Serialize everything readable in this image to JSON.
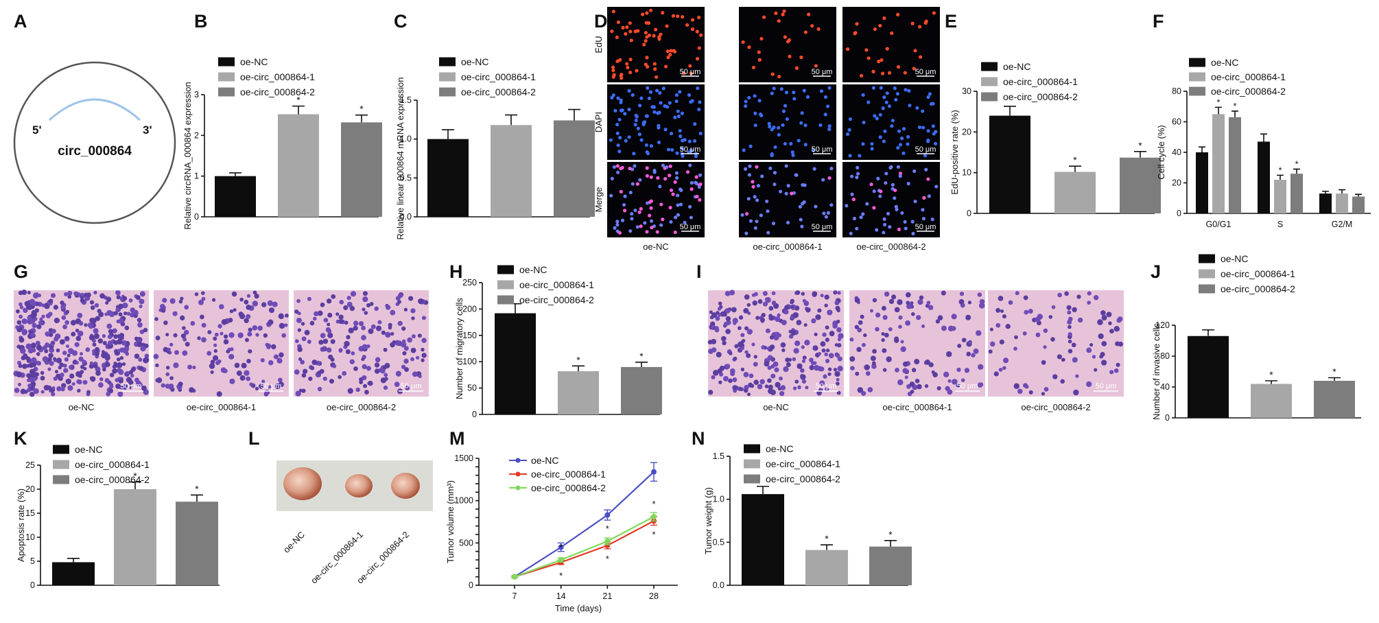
{
  "figure": {
    "palette": {
      "black": "#0d0d0d",
      "light_gray": "#a7a7a7",
      "dark_gray": "#7d7d7d",
      "line_blue": "#4a4fc4",
      "line_red": "#e23a2a",
      "line_green": "#7ed957"
    },
    "scale_bar_text": "50 μm",
    "legend_labels": [
      "oe-NC",
      "oe-circ_000864-1",
      "oe-circ_000864-2"
    ],
    "sig_marker": "*"
  },
  "panels": {
    "A": {
      "letter": "A",
      "circle_label": "circ_000864",
      "left_end": "5'",
      "right_end": "3'"
    },
    "B": {
      "letter": "B"
    },
    "C": {
      "letter": "C"
    },
    "D": {
      "letter": "D",
      "row_labels": [
        "EdU",
        "DAPI",
        "Merge"
      ],
      "column_labels": [
        "oe-NC",
        "oe-circ_000864-1",
        "oe-circ_000864-2"
      ]
    },
    "E": {
      "letter": "E"
    },
    "F": {
      "letter": "F"
    },
    "G": {
      "letter": "G",
      "column_labels": [
        "oe-NC",
        "oe-circ_000864-1",
        "oe-circ_000864-2"
      ]
    },
    "H": {
      "letter": "H"
    },
    "I": {
      "letter": "I",
      "column_labels": [
        "oe-NC",
        "oe-circ_000864-1",
        "oe-circ_000864-2"
      ]
    },
    "J": {
      "letter": "J"
    },
    "K": {
      "letter": "K"
    },
    "L": {
      "letter": "L",
      "labels": [
        "oe-NC",
        "oe-circ_000864-1",
        "oe-circ_000864-2"
      ]
    },
    "M": {
      "letter": "M"
    },
    "N": {
      "letter": "N"
    }
  },
  "chart_data": [
    {
      "id": "B",
      "type": "bar",
      "ylabel": "Relative circRNA_000864 expression",
      "ylim": [
        0,
        3
      ],
      "yticks": [
        0,
        1,
        2,
        3
      ],
      "categories": [
        "oe-NC",
        "oe-circ_000864-1",
        "oe-circ_000864-2"
      ],
      "values": [
        1.0,
        2.52,
        2.32
      ],
      "errors": [
        0.08,
        0.2,
        0.18
      ],
      "significant": [
        false,
        true,
        true
      ]
    },
    {
      "id": "C",
      "type": "bar",
      "ylabel": "Relative linear 000864 mRNA expression",
      "ylim": [
        0,
        1.5
      ],
      "yticks": [
        0.0,
        0.5,
        1.0,
        1.5
      ],
      "categories": [
        "oe-NC",
        "oe-circ_000864-1",
        "oe-circ_000864-2"
      ],
      "values": [
        1.0,
        1.18,
        1.24
      ],
      "errors": [
        0.12,
        0.13,
        0.14
      ],
      "significant": [
        false,
        false,
        false
      ]
    },
    {
      "id": "E",
      "type": "bar",
      "ylabel": "EdU-positive rate (%)",
      "ylim": [
        0,
        30
      ],
      "yticks": [
        0,
        10,
        20,
        30
      ],
      "categories": [
        "oe-NC",
        "oe-circ_000864-1",
        "oe-circ_000864-2"
      ],
      "values": [
        24,
        10.2,
        13.7
      ],
      "errors": [
        2.3,
        1.4,
        1.5
      ],
      "significant": [
        false,
        true,
        true
      ]
    },
    {
      "id": "F",
      "type": "bar",
      "ylabel": "Cell cycle (%)",
      "ylim": [
        0,
        80
      ],
      "yticks": [
        0,
        20,
        40,
        60,
        80
      ],
      "groups": [
        "G0/G1",
        "S",
        "G2/M"
      ],
      "series": [
        {
          "name": "oe-NC",
          "values": [
            40,
            47,
            13
          ],
          "errors": [
            3.5,
            5,
            1.5
          ],
          "significant": [
            false,
            false,
            false
          ]
        },
        {
          "name": "oe-circ_000864-1",
          "values": [
            65,
            22,
            13
          ],
          "errors": [
            4.5,
            3,
            2.5
          ],
          "significant": [
            true,
            true,
            false
          ]
        },
        {
          "name": "oe-circ_000864-2",
          "values": [
            63,
            26,
            11
          ],
          "errors": [
            4,
            3,
            1.5
          ],
          "significant": [
            true,
            true,
            false
          ]
        }
      ]
    },
    {
      "id": "H",
      "type": "bar",
      "ylabel": "Number of migratory cells",
      "ylim": [
        0,
        250
      ],
      "yticks": [
        0,
        50,
        100,
        150,
        200,
        250
      ],
      "categories": [
        "oe-NC",
        "oe-circ_000864-1",
        "oe-circ_000864-2"
      ],
      "values": [
        192,
        82,
        90
      ],
      "errors": [
        18,
        10,
        9
      ],
      "significant": [
        false,
        true,
        true
      ]
    },
    {
      "id": "J",
      "type": "bar",
      "ylabel": "Number of invasive cells",
      "ylim": [
        0,
        120
      ],
      "yticks": [
        0,
        40,
        80,
        120
      ],
      "categories": [
        "oe-NC",
        "oe-circ_000864-1",
        "oe-circ_000864-2"
      ],
      "values": [
        106,
        44,
        48
      ],
      "errors": [
        8,
        4,
        4
      ],
      "significant": [
        false,
        true,
        true
      ]
    },
    {
      "id": "K",
      "type": "bar",
      "ylabel": "Apoptosis rate (%)",
      "ylim": [
        0,
        25
      ],
      "yticks": [
        0,
        5,
        10,
        15,
        20,
        25
      ],
      "categories": [
        "oe-NC",
        "oe-circ_000864-1",
        "oe-circ_000864-2"
      ],
      "values": [
        4.8,
        20,
        17.4
      ],
      "errors": [
        0.8,
        1.5,
        1.4
      ],
      "significant": [
        false,
        true,
        true
      ]
    },
    {
      "id": "M",
      "type": "line",
      "xlabel": "Time (days)",
      "ylabel": "Tumor volume (mm³)",
      "ylim": [
        0,
        1500
      ],
      "yticks": [
        0,
        100,
        200,
        300,
        400,
        500,
        600,
        700,
        800,
        900,
        1000,
        1100,
        1200,
        1300,
        1400,
        1500
      ],
      "x": [
        7,
        14,
        21,
        28
      ],
      "series": [
        {
          "name": "oe-NC",
          "values": [
            100,
            450,
            830,
            1340
          ],
          "errors": [
            10,
            50,
            60,
            110
          ]
        },
        {
          "name": "oe-circ_000864-1",
          "values": [
            100,
            270,
            470,
            760
          ],
          "errors": [
            10,
            25,
            40,
            50
          ]
        },
        {
          "name": "oe-circ_000864-2",
          "values": [
            100,
            300,
            520,
            810
          ],
          "errors": [
            10,
            25,
            40,
            50
          ]
        }
      ]
    },
    {
      "id": "N",
      "type": "bar",
      "ylabel": "Tumor weight (g)",
      "ylim": [
        0,
        1.5
      ],
      "yticks": [
        0.0,
        0.5,
        1.0,
        1.5
      ],
      "categories": [
        "oe-NC",
        "oe-circ_000864-1",
        "oe-circ_000864-2"
      ],
      "values": [
        1.06,
        0.41,
        0.45
      ],
      "errors": [
        0.09,
        0.06,
        0.07
      ],
      "significant": [
        false,
        true,
        true
      ]
    }
  ]
}
